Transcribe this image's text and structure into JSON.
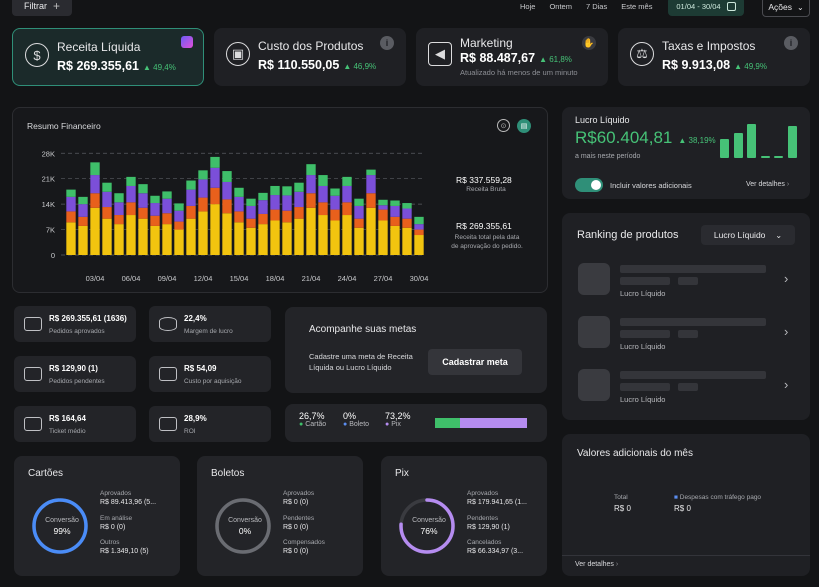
{
  "topbar": {
    "filter_label": "Filtrar",
    "periods": [
      "Hoje",
      "Ontem",
      "7 Dias",
      "Este mês"
    ],
    "date_range": "01/04 - 30/04",
    "actions_label": "Ações"
  },
  "kpis": [
    {
      "title": "Receita Líquida",
      "value": "R$ 269.355,61",
      "delta": "49,4%"
    },
    {
      "title": "Custo dos Produtos",
      "value": "R$ 110.550,05",
      "delta": "46,9%"
    },
    {
      "title": "Marketing",
      "value": "R$ 88.487,67",
      "delta": "61,8%",
      "sub": "Atualizado há menos de um minuto"
    },
    {
      "title": "Taxas e Impostos",
      "value": "R$ 9.913,08",
      "delta": "49,9%"
    }
  ],
  "resumo": {
    "title": "Resumo Financeiro",
    "gross_value": "R$ 337.559,28",
    "gross_label": "Receita Bruta",
    "net_value": "R$ 269.355,61",
    "net_label_1": "Receita total pela data",
    "net_label_2": "de aprovação do pedido."
  },
  "chart_data": {
    "type": "bar",
    "stacked": true,
    "categories": [
      "01/04",
      "02/04",
      "03/04",
      "04/04",
      "05/04",
      "06/04",
      "07/04",
      "08/04",
      "09/04",
      "10/04",
      "11/04",
      "12/04",
      "13/04",
      "14/04",
      "15/04",
      "16/04",
      "17/04",
      "18/04",
      "19/04",
      "20/04",
      "21/04",
      "22/04",
      "23/04",
      "24/04",
      "25/04",
      "26/04",
      "27/04",
      "28/04",
      "29/04",
      "30/04"
    ],
    "x_tick_labels": [
      "03/04",
      "06/04",
      "09/04",
      "12/04",
      "15/04",
      "18/04",
      "21/04",
      "24/04",
      "27/04",
      "30/04"
    ],
    "y_tick_labels": [
      "0",
      "7K",
      "14K",
      "21K",
      "28K"
    ],
    "ylim": [
      0,
      30000
    ],
    "grid": true,
    "series": [
      {
        "color": "#f2c40f",
        "values": [
          9000,
          8000,
          13000,
          10000,
          8500,
          11000,
          10000,
          8000,
          8500,
          7000,
          10000,
          12000,
          14000,
          11500,
          9000,
          7500,
          8500,
          9500,
          9000,
          10000,
          13000,
          11000,
          9500,
          11000,
          7500,
          13000,
          9500,
          8000,
          7500,
          5500
        ]
      },
      {
        "color": "#e8601c",
        "values": [
          3000,
          2500,
          4000,
          3200,
          2500,
          3500,
          3000,
          2800,
          3000,
          2200,
          3500,
          3800,
          4500,
          3800,
          3000,
          2500,
          2800,
          3000,
          3200,
          3200,
          4000,
          3500,
          3000,
          3500,
          2500,
          4000,
          3000,
          2500,
          2500,
          1500
        ]
      },
      {
        "color": "#7b4fd9",
        "values": [
          4000,
          3500,
          5000,
          4200,
          3500,
          4500,
          4000,
          3500,
          4000,
          3000,
          4500,
          5000,
          5500,
          4800,
          4000,
          3500,
          3800,
          4000,
          4200,
          4200,
          5000,
          4500,
          3800,
          4500,
          3500,
          5000,
          1200,
          3000,
          2800,
          1500
        ]
      },
      {
        "color": "#3fbf6a",
        "values": [
          2000,
          2000,
          3500,
          2500,
          2500,
          2500,
          2500,
          2000,
          2000,
          2000,
          2500,
          2500,
          3000,
          3000,
          2500,
          2000,
          2000,
          2500,
          2500,
          2500,
          3000,
          3000,
          2000,
          2500,
          2000,
          1500,
          1500,
          1500,
          1500,
          2000
        ]
      }
    ]
  },
  "lucro": {
    "title": "Lucro Líquido",
    "value": "R$60.404,81",
    "delta": "38,19%",
    "sub": "a mais neste período",
    "toggle_label": "Incluir valores adicionais",
    "toggle_on": true,
    "details": "Ver detalhes",
    "bars": [
      0.55,
      0.75,
      1.0,
      0.05,
      0.05,
      0.95
    ]
  },
  "ranking": {
    "title": "Ranking de produtos",
    "select_value": "Lucro Líquido",
    "rows": [
      {
        "label": "Lucro Líquido"
      },
      {
        "label": "Lucro Líquido"
      },
      {
        "label": "Lucro Líquido"
      }
    ]
  },
  "minis": [
    {
      "value": "R$ 269.355,61 (1636)",
      "label": "Pedidos aprovados"
    },
    {
      "value": "22,4%",
      "label": "Margem de lucro"
    },
    {
      "value": "R$ 129,90 (1)",
      "label": "Pedidos pendentes"
    },
    {
      "value": "R$ 54,09",
      "label": "Custo por aquisição"
    },
    {
      "value": "R$ 164,64",
      "label": "Ticket médio"
    },
    {
      "value": "28,9%",
      "label": "ROI"
    }
  ],
  "metas": {
    "title": "Acompanhe suas metas",
    "text_1": "Cadastre uma meta de Receita",
    "text_2": "Líquida ou Lucro Líquido",
    "button": "Cadastrar meta"
  },
  "split": {
    "items": [
      {
        "pct": "26,7%",
        "label": "Cartão",
        "color": "#3fbf6a",
        "fraction": 0.267
      },
      {
        "pct": "0%",
        "label": "Boleto",
        "color": "#5b8def",
        "fraction": 0
      },
      {
        "pct": "73,2%",
        "label": "Pix",
        "color": "#b58cf0",
        "fraction": 0.732
      }
    ]
  },
  "payments": [
    {
      "title": "Cartões",
      "ring_label": "Conversão",
      "ring_value": "99%",
      "fraction": 0.99,
      "color": "#4a8cf7",
      "stats": [
        {
          "l": "Aprovados",
          "v": "R$ 89.413,96 (5..."
        },
        {
          "l": "Em análise",
          "v": "R$ 0 (0)"
        },
        {
          "l": "Outros",
          "v": "R$ 1.349,10 (5)"
        }
      ]
    },
    {
      "title": "Boletos",
      "ring_label": "Conversão",
      "ring_value": "0%",
      "fraction": 0,
      "color": "#6a6c72",
      "stats": [
        {
          "l": "Aprovados",
          "v": "R$ 0 (0)"
        },
        {
          "l": "Pendentes",
          "v": "R$ 0 (0)"
        },
        {
          "l": "Compensados",
          "v": "R$ 0 (0)"
        }
      ]
    },
    {
      "title": "Pix",
      "ring_label": "Conversão",
      "ring_value": "76%",
      "fraction": 0.76,
      "color": "#b58cf0",
      "stats": [
        {
          "l": "Aprovados",
          "v": "R$ 179.941,65 (1..."
        },
        {
          "l": "Pendentes",
          "v": "R$ 129,90 (1)"
        },
        {
          "l": "Cancelados",
          "v": "R$ 66.334,97 (3..."
        }
      ]
    }
  ],
  "adicionais": {
    "title": "Valores adicionais do mês",
    "total_label": "Total",
    "total_value": "R$ 0",
    "ads_label": "Despesas com tráfego pago",
    "ads_value": "R$ 0",
    "details": "Ver detalhes"
  }
}
